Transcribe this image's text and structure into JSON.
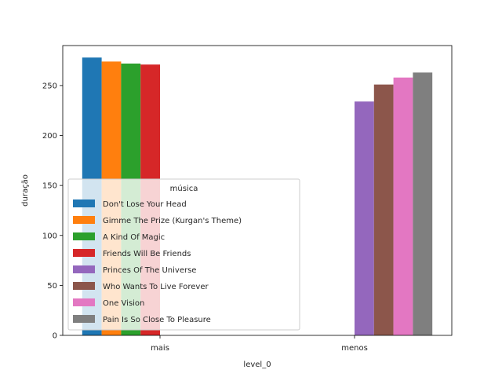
{
  "chart_data": {
    "type": "bar",
    "categories": [
      "mais",
      "menos"
    ],
    "xlabel": "level_0",
    "ylabel": "duração",
    "ylim": [
      0,
      290
    ],
    "yticks": [
      0,
      50,
      100,
      150,
      200,
      250
    ],
    "grid": false,
    "legend": {
      "title": "música",
      "placement": "center-left"
    },
    "series": [
      {
        "name": "Don't Lose Your Head",
        "color": "#1f77b4",
        "values": [
          278,
          null
        ]
      },
      {
        "name": "Gimme The Prize (Kurgan's Theme)",
        "color": "#ff7f0e",
        "values": [
          274,
          null
        ]
      },
      {
        "name": "A Kind Of Magic",
        "color": "#2ca02c",
        "values": [
          272,
          null
        ]
      },
      {
        "name": "Friends Will Be Friends",
        "color": "#d62728",
        "values": [
          271,
          null
        ]
      },
      {
        "name": "Princes Of The Universe",
        "color": "#9467bd",
        "values": [
          null,
          234
        ]
      },
      {
        "name": "Who Wants To Live Forever",
        "color": "#8c564b",
        "values": [
          null,
          251
        ]
      },
      {
        "name": "One Vision",
        "color": "#e377c2",
        "values": [
          null,
          258
        ]
      },
      {
        "name": "Pain Is So Close To Pleasure",
        "color": "#7f7f7f",
        "values": [
          null,
          263
        ]
      }
    ]
  }
}
